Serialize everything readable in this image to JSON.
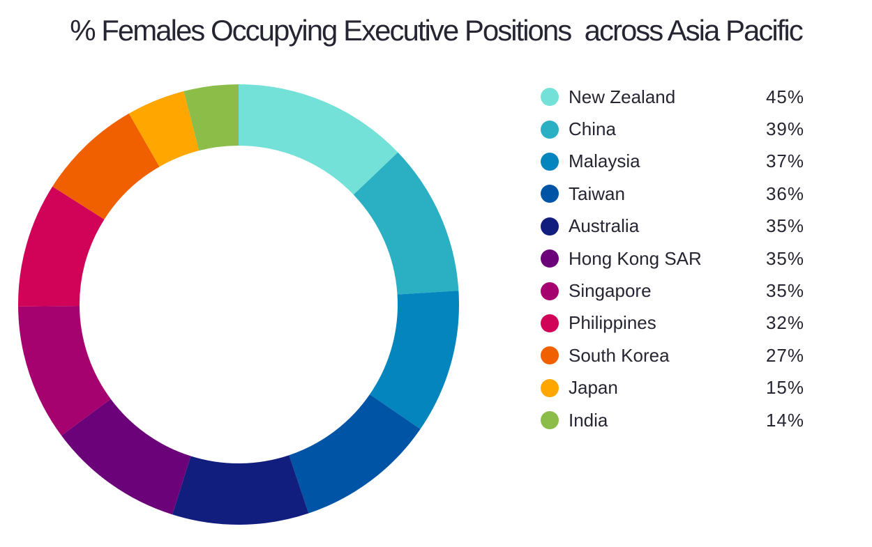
{
  "chart_data": {
    "type": "pie",
    "subtype": "donut",
    "title": "% Females Occupying Executive Positions  across Asia Pacific",
    "categories": [
      "New Zealand",
      "China",
      "Malaysia",
      "Taiwan",
      "Australia",
      "Hong Kong SAR",
      "Singapore",
      "Philippines",
      "South Korea",
      "Japan",
      "India"
    ],
    "values": [
      45,
      39,
      37,
      36,
      35,
      35,
      35,
      32,
      27,
      15,
      14
    ],
    "value_labels": [
      "45%",
      "39%",
      "37%",
      "36%",
      "35%",
      "35%",
      "35%",
      "32%",
      "27%",
      "15%",
      "14%"
    ],
    "colors": [
      "#74e1d9",
      "#2aafc3",
      "#0585bd",
      "#0054a6",
      "#121e7e",
      "#6c027a",
      "#a5026f",
      "#d10358",
      "#f06000",
      "#ffa600",
      "#8cbd48"
    ],
    "legend_position": "right",
    "unit": "%"
  },
  "title": "% Females Occupying Executive Positions  across Asia Pacific",
  "legend": [
    {
      "label": "New Zealand",
      "value": "45%",
      "color": "#74e1d9"
    },
    {
      "label": "China",
      "value": "39%",
      "color": "#2aafc3"
    },
    {
      "label": "Malaysia",
      "value": "37%",
      "color": "#0585bd"
    },
    {
      "label": "Taiwan",
      "value": "36%",
      "color": "#0054a6"
    },
    {
      "label": "Australia",
      "value": "35%",
      "color": "#121e7e"
    },
    {
      "label": "Hong Kong SAR",
      "value": "35%",
      "color": "#6c027a"
    },
    {
      "label": "Singapore",
      "value": "35%",
      "color": "#a5026f"
    },
    {
      "label": "Philippines",
      "value": "32%",
      "color": "#d10358"
    },
    {
      "label": "South Korea",
      "value": "27%",
      "color": "#f06000"
    },
    {
      "label": "Japan",
      "value": "15%",
      "color": "#ffa600"
    },
    {
      "label": "India",
      "value": "14%",
      "color": "#8cbd48"
    }
  ]
}
